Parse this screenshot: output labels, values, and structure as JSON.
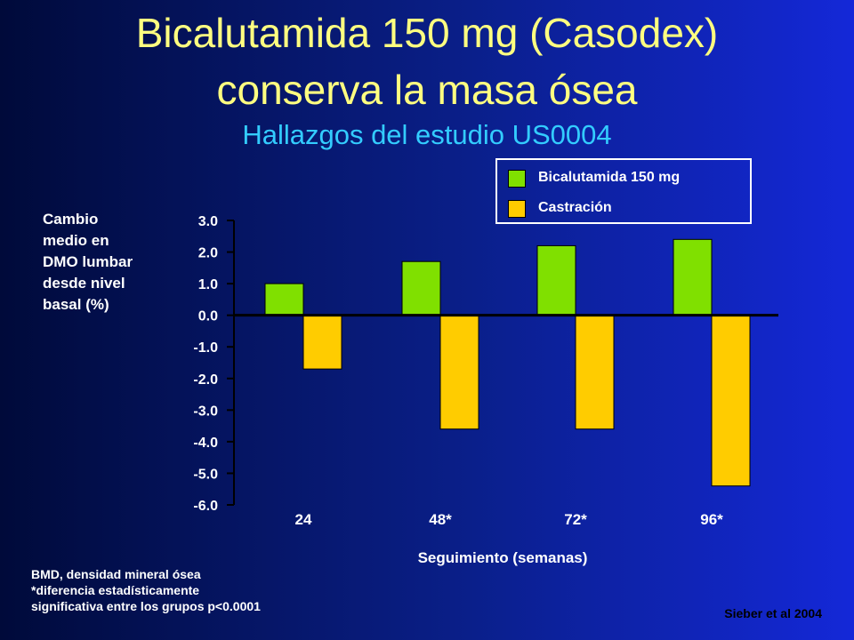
{
  "slide": {
    "title_line1": "Bicalutamida 150 mg (Casodex)",
    "title_line2": "conserva la masa ósea",
    "subtitle": "Hallazgos del estudio US0004",
    "footnotes": [
      "BMD, densidad mineral ósea",
      "*diferencia estadísticamente",
      "significativa entre los grupos p<0.0001"
    ],
    "citation": "Sieber et al 2004"
  },
  "chart_data": {
    "type": "bar",
    "categories": [
      "24",
      "48*",
      "72*",
      "96*"
    ],
    "series": [
      {
        "name": "Bicalutamida 150 mg",
        "color": "#80e000",
        "values": [
          1.0,
          1.7,
          2.2,
          2.4
        ]
      },
      {
        "name": "Castración",
        "color": "#ffcc00",
        "values": [
          -1.7,
          -3.6,
          -3.6,
          -5.4
        ]
      }
    ],
    "ylabel_lines": [
      "Cambio",
      "medio en",
      "DMO lumbar",
      "desde nivel",
      "basal (%)"
    ],
    "xlabel": "Seguimiento (semanas)",
    "ylim": [
      -6.0,
      3.0
    ],
    "yticks": [
      "3.0",
      "2.0",
      "1.0",
      "0.0",
      "-1.0",
      "-2.0",
      "-3.0",
      "-4.0",
      "-5.0",
      "-6.0"
    ],
    "legend_position": "top-right",
    "grid": false
  }
}
